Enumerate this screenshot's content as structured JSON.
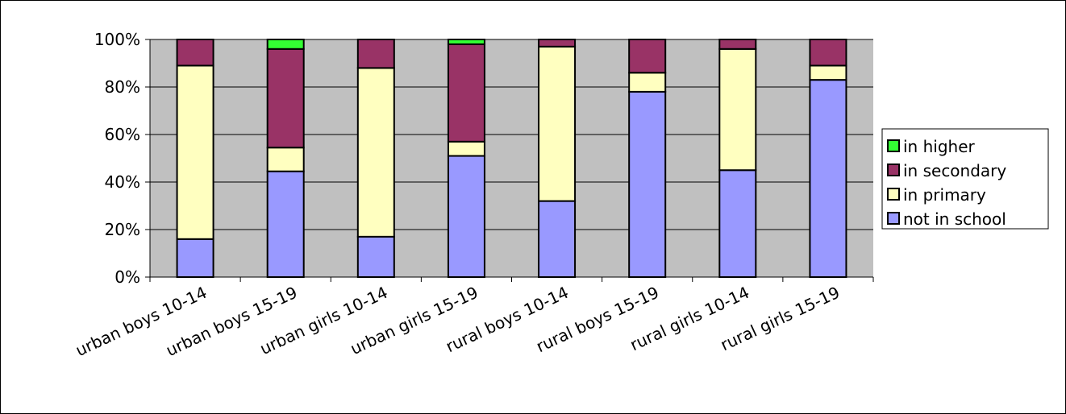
{
  "chart_data": {
    "type": "bar",
    "stacked": true,
    "percent": true,
    "categories": [
      "urban boys 10-14",
      "urban boys 15-19",
      "urban girls 10-14",
      "urban girls 15-19",
      "rural boys 10-14",
      "rural boys 15-19",
      "rural girls 10-14",
      "rural girls 15-19"
    ],
    "series": [
      {
        "name": "not in school",
        "color": "#9999ff",
        "values": [
          16,
          44.5,
          17,
          51,
          32,
          78,
          45,
          83
        ]
      },
      {
        "name": "in primary",
        "color": "#ffffc0",
        "values": [
          73,
          10,
          71,
          6,
          65,
          8,
          51,
          6
        ]
      },
      {
        "name": "in secondary",
        "color": "#993366",
        "values": [
          11,
          41.5,
          12,
          41,
          3,
          14,
          4,
          11
        ]
      },
      {
        "name": "in higher",
        "color": "#33ff33",
        "values": [
          0,
          4,
          0,
          2,
          0,
          0,
          0,
          0
        ]
      }
    ],
    "ylim": [
      0,
      100
    ],
    "yticks": [
      "0%",
      "20%",
      "40%",
      "60%",
      "80%",
      "100%"
    ],
    "legend_order": [
      "in higher",
      "in secondary",
      "in primary",
      "not in school"
    ],
    "legend_position": "right",
    "grid": true,
    "plot_background": "#c0c0c0"
  }
}
